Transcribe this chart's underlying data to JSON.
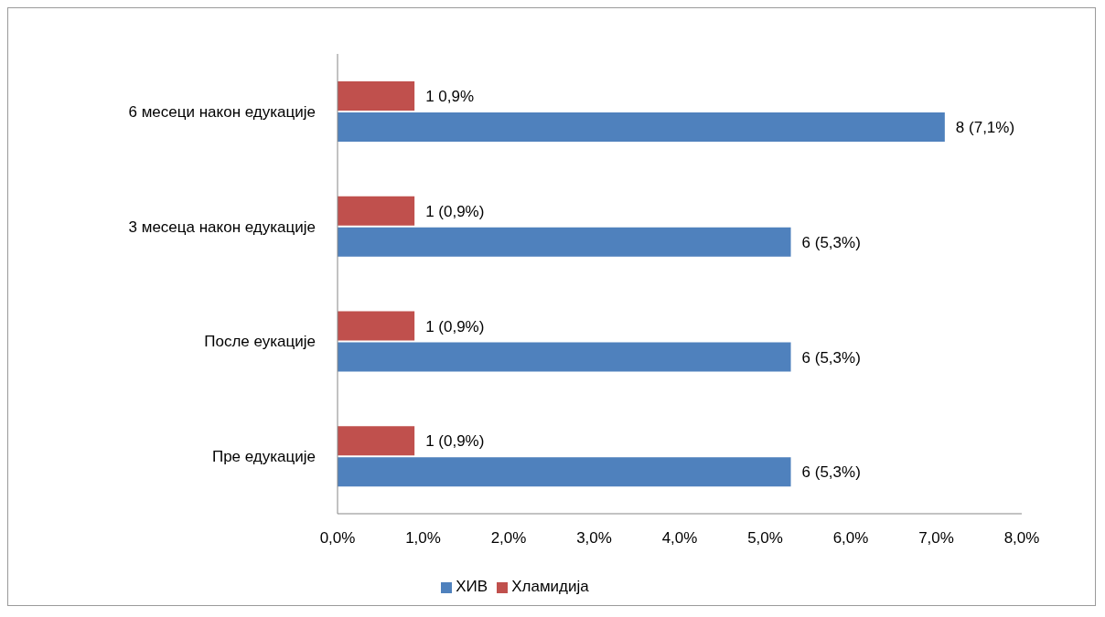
{
  "chart_data": {
    "type": "bar",
    "orientation": "horizontal",
    "categories": [
      "6 месеци након едукације",
      "3 месеца након едукације",
      "После еукације",
      "Пре едукације"
    ],
    "series": [
      {
        "name": "Хламидија",
        "color": "#c0504d",
        "values": [
          0.9,
          0.9,
          0.9,
          0.9
        ],
        "value_labels": [
          "1 0,9%",
          "1 (0,9%)",
          "1 (0,9%)",
          "1 (0,9%)"
        ]
      },
      {
        "name": "ХИВ",
        "color": "#4f81bd",
        "values": [
          7.1,
          5.3,
          5.3,
          5.3
        ],
        "value_labels": [
          "8 (7,1%)",
          "6 (5,3%)",
          "6 (5,3%)",
          "6 (5,3%)"
        ]
      }
    ],
    "xlim": [
      0,
      8
    ],
    "xticks": [
      {
        "value": 0,
        "label": "0,0%"
      },
      {
        "value": 1,
        "label": "1,0%"
      },
      {
        "value": 2,
        "label": "2,0%"
      },
      {
        "value": 3,
        "label": "3,0%"
      },
      {
        "value": 4,
        "label": "4,0%"
      },
      {
        "value": 5,
        "label": "5,0%"
      },
      {
        "value": 6,
        "label": "6,0%"
      },
      {
        "value": 7,
        "label": "7,0%"
      },
      {
        "value": 8,
        "label": "8,0%"
      }
    ],
    "grid": false,
    "legend": "bottom"
  }
}
